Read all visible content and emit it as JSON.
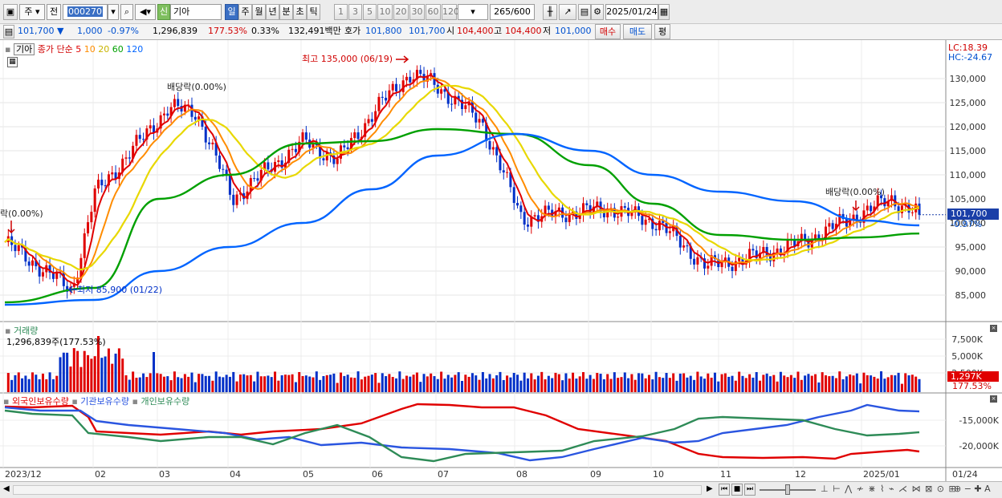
{
  "toolbar": {
    "market": "주",
    "prev": "전",
    "code": "000270",
    "sin": "신",
    "name": "기아",
    "periods": [
      "일",
      "주",
      "월",
      "년",
      "분",
      "초",
      "틱"
    ],
    "active_period": "일",
    "intervals": [
      "1",
      "3",
      "5",
      "10",
      "20",
      "30",
      "60",
      "120"
    ],
    "count": "265",
    "count_total": "/600",
    "date": "2025/01/24"
  },
  "quote": {
    "price": "101,700",
    "arrow": "▼",
    "change": "1,000",
    "change_pct": "-0.97%",
    "volume": "1,296,839",
    "volume_ratio": "177.53%",
    "turnover_pct": "0.33%",
    "amount": "132,491백만",
    "hoga_label": "호가",
    "ask": "101,800",
    "bid": "101,700",
    "open_label": "시",
    "open": "104,400",
    "high_label": "고",
    "high": "104,400",
    "low_label": "저",
    "low": "101,000",
    "buy_button": "매수",
    "sell_button": "매도",
    "eval_button": "평"
  },
  "price_panel": {
    "legend_name": "기아",
    "legend_ma_label": "종가 단순",
    "ma_periods": [
      "5",
      "10",
      "20",
      "60",
      "120"
    ],
    "ma_colors": [
      "#e00000",
      "#ff8c00",
      "#e8d800",
      "#00a000",
      "#0064ff"
    ],
    "lc_label": "LC:18.39",
    "hc_label": "HC:-24.67",
    "high_annotation": "최고 135,000 (06/19)",
    "low_annotation": "최저 85,900 (01/22)",
    "div_annotation_1": "배당락(0.00%)",
    "div_annotation_2": "락(0.00%)",
    "div_annotation_3": "배당락(0.00%)",
    "price_tag": "101,700",
    "pct_tag": "-0.97%",
    "y_ticks": [
      "130,000",
      "125,000",
      "120,000",
      "115,000",
      "110,000",
      "105,000",
      "100,000",
      "95,000",
      "90,000",
      "85,000"
    ]
  },
  "volume_panel": {
    "title": "거래량",
    "value_label": "1,296,839주(177.53%)",
    "y_ticks": [
      "7,500K",
      "5,000K",
      "2,500K"
    ],
    "last_tag": "1,297K",
    "pct_tag": "177.53%"
  },
  "holdings_panel": {
    "series_labels": [
      "외국인보유수량",
      "기관보유수량",
      "개인보유수량"
    ],
    "series_colors": [
      "#e00000",
      "#2a55e0",
      "#2e8b57"
    ],
    "y_ticks": [
      "-15,000K",
      "-20,000K"
    ]
  },
  "x_axis": {
    "labels": [
      "2023/12",
      "02",
      "03",
      "04",
      "05",
      "06",
      "07",
      "08",
      "09",
      "10",
      "11",
      "12",
      "2025/01"
    ],
    "right_label": "01/24"
  },
  "chart_data": {
    "type": "line",
    "title": "기아 (000270) 일봉",
    "x": [
      "2023/12",
      "02",
      "03",
      "04",
      "05",
      "06",
      "07",
      "08",
      "09",
      "10",
      "11",
      "12",
      "2025/01",
      "01/24"
    ],
    "series": [
      {
        "name": "기아",
        "values": [
          96000,
          86000,
          123000,
          106000,
          116000,
          125000,
          128000,
          101000,
          102000,
          100000,
          91000,
          96000,
          103000,
          101700
        ]
      },
      {
        "name": "60",
        "values": [
          83500,
          86500,
          105000,
          110000,
          116500,
          117000,
          119500,
          118500,
          112000,
          104000,
          97500,
          96500,
          97000,
          97800
        ]
      },
      {
        "name": "120",
        "values": [
          83000,
          84000,
          90000,
          95000,
          100000,
          107000,
          114000,
          118500,
          115000,
          110000,
          106500,
          104500,
          100500,
          99500
        ]
      }
    ],
    "ylim": [
      82000,
      134000
    ],
    "last_close": 101700,
    "high": {
      "value": 135000,
      "date": "06/19"
    },
    "low": {
      "value": 85900,
      "date": "01/22"
    }
  }
}
